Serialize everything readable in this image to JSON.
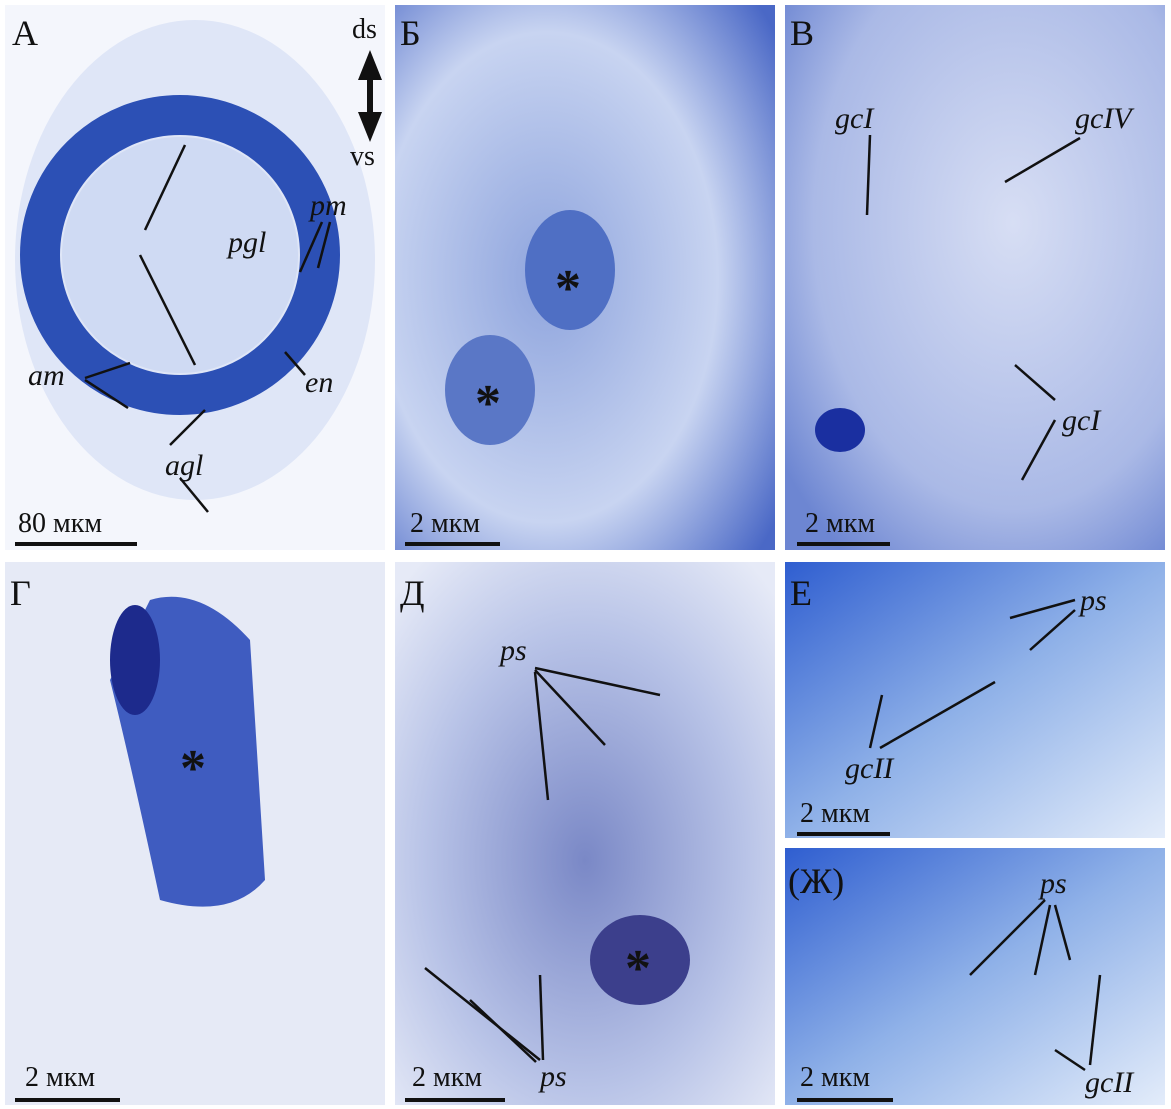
{
  "panels": [
    {
      "letter": "А",
      "scale_bar": "80 мкм",
      "labels": [
        "ds",
        "vs",
        "pgl",
        "pm",
        "am",
        "en",
        "agl"
      ]
    },
    {
      "letter": "Б",
      "scale_bar": "2 мкм",
      "labels": [
        "*",
        "*"
      ]
    },
    {
      "letter": "В",
      "scale_bar": "2 мкм",
      "labels": [
        "gcI",
        "gcIV",
        "gcI"
      ]
    },
    {
      "letter": "Г",
      "scale_bar": "2 мкм",
      "labels": [
        "*"
      ]
    },
    {
      "letter": "Д",
      "scale_bar": "2 мкм",
      "labels": [
        "ps",
        "*",
        "ps"
      ]
    },
    {
      "letter": "Е",
      "scale_bar": "2 мкм",
      "labels": [
        "ps",
        "gcII"
      ]
    },
    {
      "letter": "(Ж)",
      "scale_bar": "2 мкм",
      "labels": [
        "ps",
        "gcII"
      ]
    }
  ]
}
